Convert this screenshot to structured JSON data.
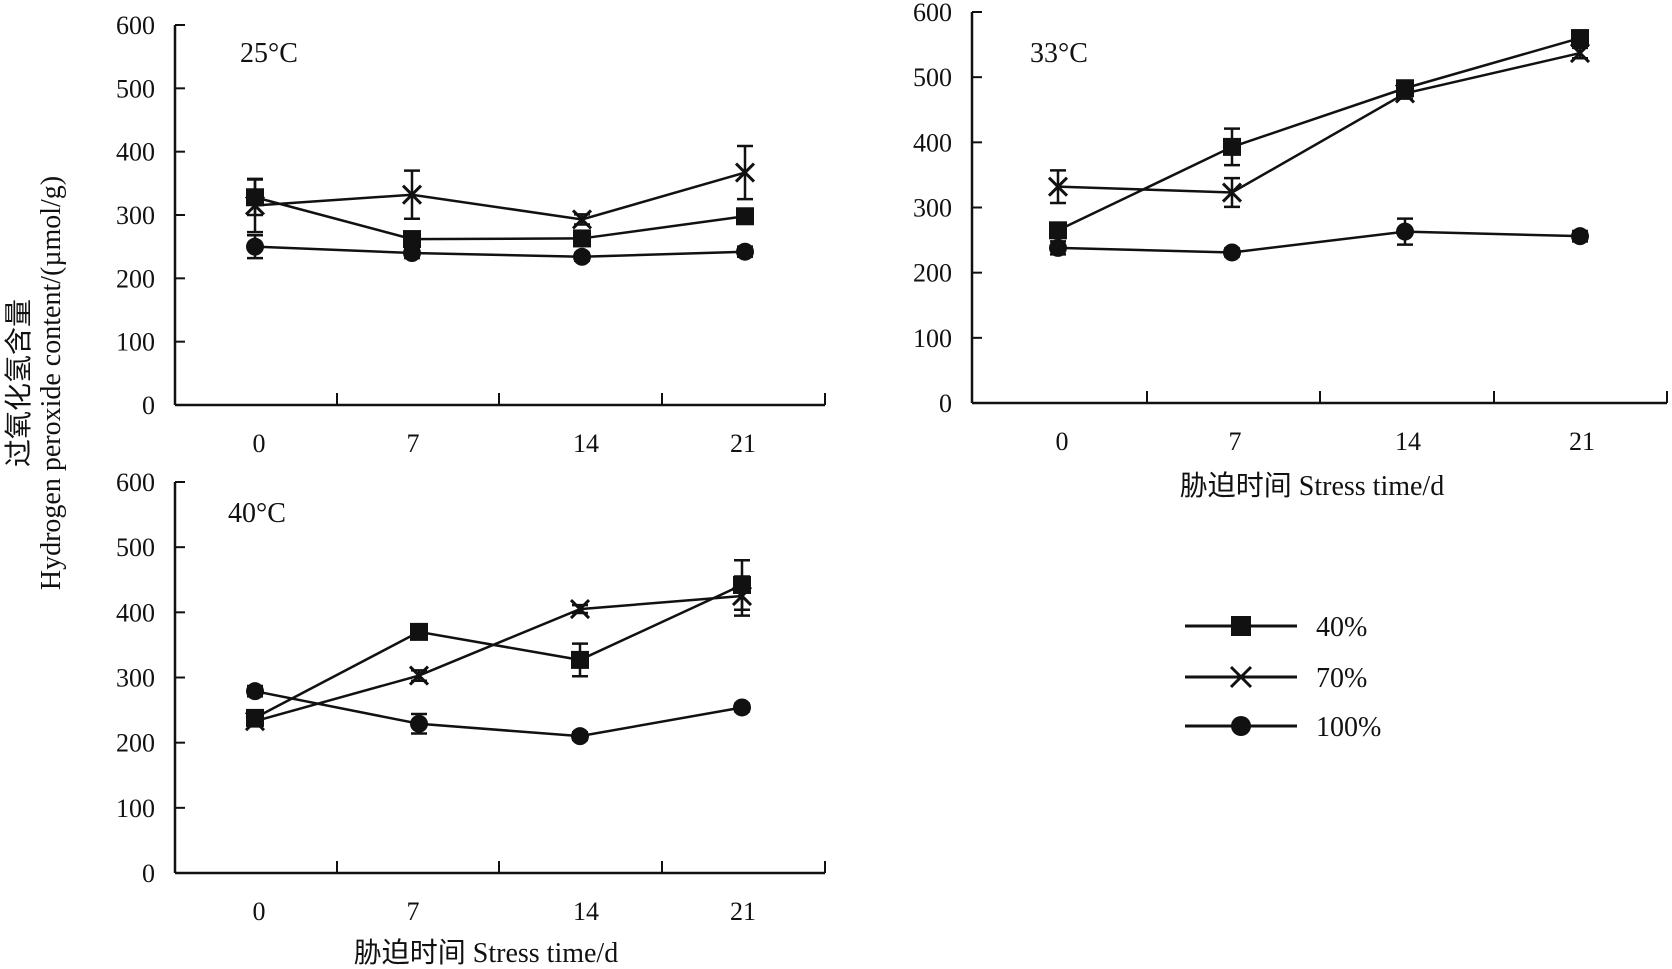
{
  "y_axis_title_line1": "过氧化氢含量",
  "y_axis_title_line2": "Hydrogen peroxide content/(µmol/g)",
  "colors": {
    "ink": "#111111",
    "background": "#ffffff"
  },
  "legend": {
    "position": "right-middle",
    "entries": [
      {
        "label": "40%",
        "marker": "square"
      },
      {
        "label": "70%",
        "marker": "x"
      },
      {
        "label": "100%",
        "marker": "circle"
      }
    ]
  },
  "chart_data": [
    {
      "type": "line",
      "panel": "25°C",
      "xlabel": "",
      "ylabel": "过氧化氢含量 Hydrogen peroxide content/(µmol/g)",
      "x": [
        0,
        7,
        14,
        21
      ],
      "x_tick_labels": [
        "0",
        "7",
        "14",
        "21"
      ],
      "ylim": [
        0,
        600
      ],
      "y_ticks": [
        0,
        100,
        200,
        300,
        400,
        500,
        600
      ],
      "grid": false,
      "series": [
        {
          "name": "40%",
          "marker": "square",
          "values": [
            328,
            262,
            263,
            298
          ],
          "errors": [
            28,
            10,
            10,
            8
          ]
        },
        {
          "name": "70%",
          "marker": "x",
          "values": [
            315,
            332,
            293,
            367
          ],
          "errors": [
            42,
            38,
            8,
            42
          ]
        },
        {
          "name": "100%",
          "marker": "circle",
          "values": [
            250,
            240,
            234,
            242
          ],
          "errors": [
            18,
            8,
            6,
            8
          ]
        }
      ]
    },
    {
      "type": "line",
      "panel": "33°C",
      "xlabel": "胁迫时间 Stress time/d",
      "ylabel": "",
      "x": [
        0,
        7,
        14,
        21
      ],
      "x_tick_labels": [
        "0",
        "7",
        "14",
        "21"
      ],
      "ylim": [
        0,
        600
      ],
      "y_ticks": [
        0,
        100,
        200,
        300,
        400,
        500,
        600
      ],
      "grid": false,
      "series": [
        {
          "name": "40%",
          "marker": "square",
          "values": [
            265,
            393,
            483,
            560
          ],
          "errors": [
            10,
            28,
            8,
            8
          ]
        },
        {
          "name": "70%",
          "marker": "x",
          "values": [
            332,
            323,
            475,
            537
          ],
          "errors": [
            25,
            22,
            8,
            8
          ]
        },
        {
          "name": "100%",
          "marker": "circle",
          "values": [
            238,
            231,
            263,
            256
          ],
          "errors": [
            10,
            6,
            20,
            8
          ]
        }
      ]
    },
    {
      "type": "line",
      "panel": "40°C",
      "xlabel": "胁迫时间 Stress time/d",
      "ylabel": "",
      "x": [
        0,
        7,
        14,
        21
      ],
      "x_tick_labels": [
        "0",
        "7",
        "14",
        "21"
      ],
      "ylim": [
        0,
        600
      ],
      "y_ticks": [
        0,
        100,
        200,
        300,
        400,
        500,
        600
      ],
      "grid": false,
      "series": [
        {
          "name": "40%",
          "marker": "square",
          "values": [
            238,
            370,
            327,
            442
          ],
          "errors": [
            8,
            8,
            25,
            38
          ]
        },
        {
          "name": "70%",
          "marker": "x",
          "values": [
            233,
            303,
            405,
            425
          ],
          "errors": [
            8,
            8,
            6,
            30
          ]
        },
        {
          "name": "100%",
          "marker": "circle",
          "values": [
            279,
            229,
            210,
            254
          ],
          "errors": [
            8,
            15,
            6,
            6
          ]
        }
      ]
    }
  ]
}
